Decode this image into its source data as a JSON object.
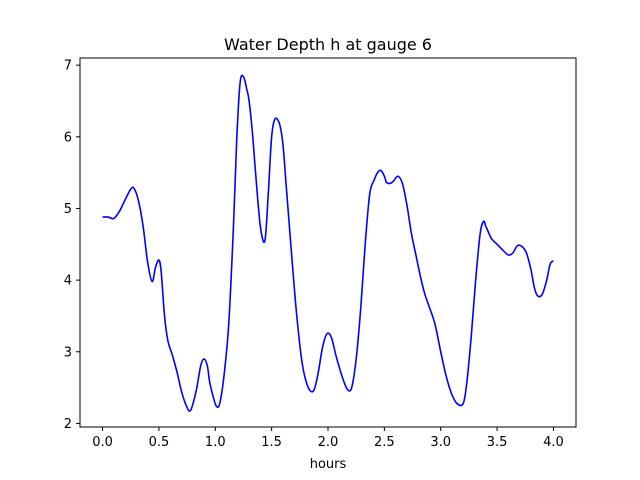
{
  "chart_data": {
    "type": "line",
    "title": "Water Depth h at gauge 6",
    "xlabel": "hours",
    "ylabel": "",
    "xlim": [
      -0.2,
      4.2
    ],
    "ylim": [
      1.95,
      7.1
    ],
    "xticks": [
      0.0,
      0.5,
      1.0,
      1.5,
      2.0,
      2.5,
      3.0,
      3.5,
      4.0
    ],
    "xtick_labels": [
      "0.0",
      "0.5",
      "1.0",
      "1.5",
      "2.0",
      "2.5",
      "3.0",
      "3.5",
      "4.0"
    ],
    "yticks": [
      2,
      3,
      4,
      5,
      6,
      7
    ],
    "ytick_labels": [
      "2",
      "3",
      "4",
      "5",
      "6",
      "7"
    ],
    "grid": false,
    "series": [
      {
        "color": "#0000ff",
        "x": [
          0.0,
          0.05,
          0.1,
          0.15,
          0.2,
          0.25,
          0.28,
          0.32,
          0.36,
          0.4,
          0.44,
          0.47,
          0.5,
          0.52,
          0.55,
          0.58,
          0.62,
          0.66,
          0.7,
          0.74,
          0.78,
          0.83,
          0.87,
          0.9,
          0.93,
          0.95,
          0.98,
          1.01,
          1.04,
          1.08,
          1.12,
          1.16,
          1.19,
          1.22,
          1.25,
          1.28,
          1.3,
          1.33,
          1.36,
          1.4,
          1.44,
          1.47,
          1.5,
          1.53,
          1.57,
          1.6,
          1.63,
          1.67,
          1.72,
          1.77,
          1.82,
          1.87,
          1.91,
          1.95,
          1.99,
          2.03,
          2.07,
          2.12,
          2.17,
          2.21,
          2.25,
          2.29,
          2.33,
          2.37,
          2.41,
          2.44,
          2.47,
          2.5,
          2.52,
          2.55,
          2.58,
          2.62,
          2.66,
          2.7,
          2.74,
          2.78,
          2.82,
          2.86,
          2.9,
          2.95,
          3.0,
          3.05,
          3.1,
          3.15,
          3.2,
          3.23,
          3.27,
          3.31,
          3.35,
          3.38,
          3.4,
          3.42,
          3.45,
          3.5,
          3.55,
          3.6,
          3.64,
          3.68,
          3.72,
          3.76,
          3.8,
          3.83,
          3.86,
          3.9,
          3.94,
          3.97,
          4.0
        ],
        "y": [
          4.88,
          4.88,
          4.86,
          4.96,
          5.12,
          5.27,
          5.28,
          5.1,
          4.75,
          4.25,
          3.98,
          4.18,
          4.28,
          4.12,
          3.5,
          3.15,
          2.95,
          2.72,
          2.45,
          2.26,
          2.18,
          2.45,
          2.8,
          2.9,
          2.8,
          2.58,
          2.38,
          2.24,
          2.28,
          2.7,
          3.4,
          4.7,
          5.95,
          6.75,
          6.84,
          6.66,
          6.5,
          6.05,
          5.45,
          4.75,
          4.55,
          5.2,
          6.0,
          6.25,
          6.18,
          5.9,
          5.3,
          4.5,
          3.55,
          2.85,
          2.52,
          2.45,
          2.68,
          3.05,
          3.25,
          3.2,
          2.95,
          2.68,
          2.48,
          2.5,
          2.9,
          3.6,
          4.5,
          5.2,
          5.4,
          5.5,
          5.53,
          5.45,
          5.36,
          5.35,
          5.38,
          5.45,
          5.35,
          5.05,
          4.65,
          4.35,
          4.05,
          3.8,
          3.62,
          3.38,
          3.0,
          2.65,
          2.4,
          2.27,
          2.28,
          2.55,
          3.2,
          4.0,
          4.65,
          4.82,
          4.75,
          4.68,
          4.58,
          4.5,
          4.42,
          4.35,
          4.38,
          4.48,
          4.47,
          4.38,
          4.15,
          3.9,
          3.78,
          3.8,
          4.0,
          4.22,
          4.27
        ]
      }
    ]
  }
}
